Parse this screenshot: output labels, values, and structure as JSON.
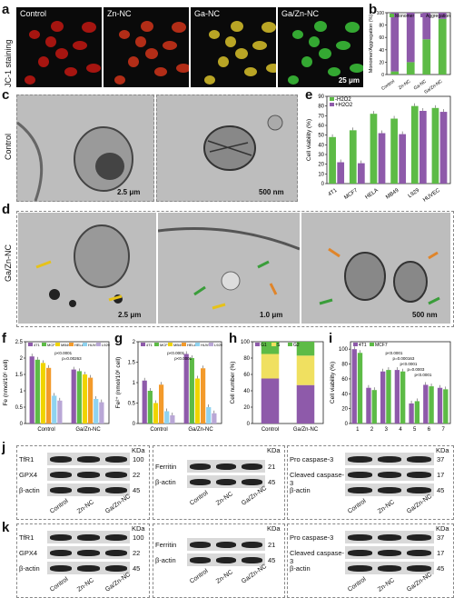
{
  "panels": {
    "a": "a",
    "b": "b",
    "c": "c",
    "d": "d",
    "e": "e",
    "f": "f",
    "g": "g",
    "h": "h",
    "i": "i",
    "j": "j",
    "k": "k"
  },
  "panel_a": {
    "side_label": "JC-1 staining",
    "images": [
      {
        "label": "Control",
        "color": "#c21812"
      },
      {
        "label": "Zn-NC",
        "color": "#d0341a"
      },
      {
        "label": "Ga-NC",
        "color": "#d8c12a"
      },
      {
        "label": "Ga/Zn-NC",
        "color": "#3cc43a"
      }
    ],
    "scale_bar": "25 μm"
  },
  "panel_c": {
    "side_label": "Control",
    "scale_bars": [
      "2.5 μm",
      "500 nm"
    ]
  },
  "panel_d": {
    "side_label": "Ga/Zn-NC",
    "scale_bars": [
      "2.5 μm",
      "1.0 μm",
      "500 nm"
    ]
  },
  "blots_j": {
    "lanes": [
      "Control",
      "Zn-NC",
      "Ga/Zn-NC"
    ],
    "kda_label": "KDa",
    "left": [
      {
        "name": "TfR1",
        "kda": "100"
      },
      {
        "name": "GPX4",
        "kda": "22"
      },
      {
        "name": "β-actin",
        "kda": "45"
      }
    ],
    "middle": [
      {
        "name": "Ferritin",
        "kda": "21"
      },
      {
        "name": "β-actin",
        "kda": "45"
      }
    ],
    "right": [
      {
        "name": "Pro caspase-3",
        "kda": "37"
      },
      {
        "name": "Cleaved caspase-3",
        "kda": "17"
      },
      {
        "name": "β-actin",
        "kda": "45"
      }
    ]
  },
  "blots_k": {
    "lanes": [
      "Control",
      "Zn-NC",
      "Ga/Zn-NC"
    ],
    "kda_label": "KDa",
    "left": [
      {
        "name": "TfR1",
        "kda": "100"
      },
      {
        "name": "GPX4",
        "kda": "22"
      },
      {
        "name": "β-actin",
        "kda": "45"
      }
    ],
    "middle": [
      {
        "name": "Ferritin",
        "kda": "21"
      },
      {
        "name": "β-actin",
        "kda": "45"
      }
    ],
    "right": [
      {
        "name": "Pro caspase-3",
        "kda": "37"
      },
      {
        "name": "Cleaved caspase-3",
        "kda": "17"
      },
      {
        "name": "β-actin",
        "kda": "45"
      }
    ]
  },
  "chart_data": [
    {
      "id": "b",
      "type": "bar",
      "stacked": true,
      "categories": [
        "Control",
        "Zn-NC",
        "Ga-NC",
        "Ga/Zn-NC"
      ],
      "series": [
        {
          "name": "Monomer",
          "color": "#5dbb46",
          "values": [
            5,
            20,
            57,
            90
          ]
        },
        {
          "name": "Aggregation",
          "color": "#8e5aaa",
          "values": [
            95,
            80,
            43,
            10
          ]
        }
      ],
      "ylabel": "Monomer/Aggregation (%)",
      "ylim": [
        0,
        100
      ],
      "yticks": [
        0,
        20,
        40,
        60,
        80,
        100
      ],
      "legend": "top"
    },
    {
      "id": "e",
      "type": "bar",
      "categories": [
        "4T1",
        "MCF7",
        "HELA",
        "MB49",
        "L929",
        "HUVEC"
      ],
      "series": [
        {
          "name": "-H2O2",
          "color": "#5dbb46",
          "values": [
            48,
            55,
            72,
            67,
            80,
            78
          ]
        },
        {
          "name": "+H2O2",
          "color": "#8e5aaa",
          "values": [
            22,
            21,
            52,
            51,
            75,
            74
          ]
        }
      ],
      "ylabel": "Cell viability (%)",
      "ylim": [
        0,
        90
      ],
      "yticks": [
        0,
        10,
        20,
        30,
        40,
        50,
        60,
        70,
        80,
        90
      ],
      "legend": "top-left"
    },
    {
      "id": "f",
      "type": "bar",
      "categories": [
        "Control",
        "Ga/Zn-NC"
      ],
      "series": [
        {
          "name": "4T1",
          "color": "#8e5aaa",
          "values": [
            2.05,
            1.65
          ]
        },
        {
          "name": "MCF7",
          "color": "#5dbb46",
          "values": [
            1.95,
            1.6
          ]
        },
        {
          "name": "MB49",
          "color": "#f0d400",
          "values": [
            1.85,
            1.5
          ]
        },
        {
          "name": "HELA",
          "color": "#f39a2b",
          "values": [
            1.7,
            1.4
          ]
        },
        {
          "name": "HUVEC",
          "color": "#8fd3f0",
          "values": [
            0.85,
            0.75
          ]
        },
        {
          "name": "L929",
          "color": "#b9a7d6",
          "values": [
            0.7,
            0.65
          ]
        }
      ],
      "annotations": [
        "p<0.0001",
        "p=0.00263"
      ],
      "ylabel": "Fe (nmol/10⁶ cell)",
      "ylim": [
        0,
        2.5
      ],
      "yticks": [
        0,
        0.5,
        1.0,
        1.5,
        2.0,
        2.5
      ],
      "legend": "top"
    },
    {
      "id": "g",
      "type": "bar",
      "categories": [
        "Control",
        "Ga/Zn-NC"
      ],
      "series": [
        {
          "name": "4T1",
          "color": "#8e5aaa",
          "values": [
            1.05,
            1.7
          ]
        },
        {
          "name": "MCF7",
          "color": "#5dbb46",
          "values": [
            0.8,
            1.6
          ]
        },
        {
          "name": "MB49",
          "color": "#f0d400",
          "values": [
            0.5,
            1.1
          ]
        },
        {
          "name": "HELA",
          "color": "#f39a2b",
          "values": [
            0.95,
            1.35
          ]
        },
        {
          "name": "HUVEC",
          "color": "#8fd3f0",
          "values": [
            0.3,
            0.4
          ]
        },
        {
          "name": "L929",
          "color": "#b9a7d6",
          "values": [
            0.2,
            0.25
          ]
        }
      ],
      "annotations": [
        "p<0.0001",
        "p<0.0001"
      ],
      "ylabel": "Fe²⁺ (nmol/10⁶ cell)",
      "ylim": [
        0,
        2.0
      ],
      "yticks": [
        0,
        0.5,
        1.0,
        1.5,
        2.0
      ],
      "legend": "top"
    },
    {
      "id": "h",
      "type": "bar",
      "stacked": true,
      "categories": [
        "Control",
        "Ga/Zn-NC"
      ],
      "series": [
        {
          "name": "G1",
          "color": "#8e5aaa",
          "values": [
            55,
            47
          ]
        },
        {
          "name": "S",
          "color": "#f0e060",
          "values": [
            30,
            36
          ]
        },
        {
          "name": "G2",
          "color": "#5dbb46",
          "values": [
            15,
            17
          ]
        }
      ],
      "ylabel": "Cell number (%)",
      "ylim": [
        0,
        100
      ],
      "yticks": [
        0,
        20,
        40,
        60,
        80,
        100
      ],
      "legend": "top"
    },
    {
      "id": "i",
      "type": "bar",
      "categories": [
        "1",
        "2",
        "3",
        "4",
        "5",
        "6",
        "7"
      ],
      "series": [
        {
          "name": "4T1",
          "color": "#8e5aaa",
          "values": [
            100,
            48,
            70,
            72,
            27,
            52,
            48
          ]
        },
        {
          "name": "MCF7",
          "color": "#5dbb46",
          "values": [
            95,
            45,
            72,
            70,
            30,
            50,
            46
          ]
        }
      ],
      "annotations": [
        "p<0.0001",
        "p=0.000163",
        "p<0.0001",
        "p=0.0003",
        "p<0.0001"
      ],
      "ylabel": "Cell viability (%)",
      "ylim": [
        0,
        110
      ],
      "yticks": [
        0,
        20,
        40,
        60,
        80,
        100
      ],
      "legend": "top"
    }
  ]
}
